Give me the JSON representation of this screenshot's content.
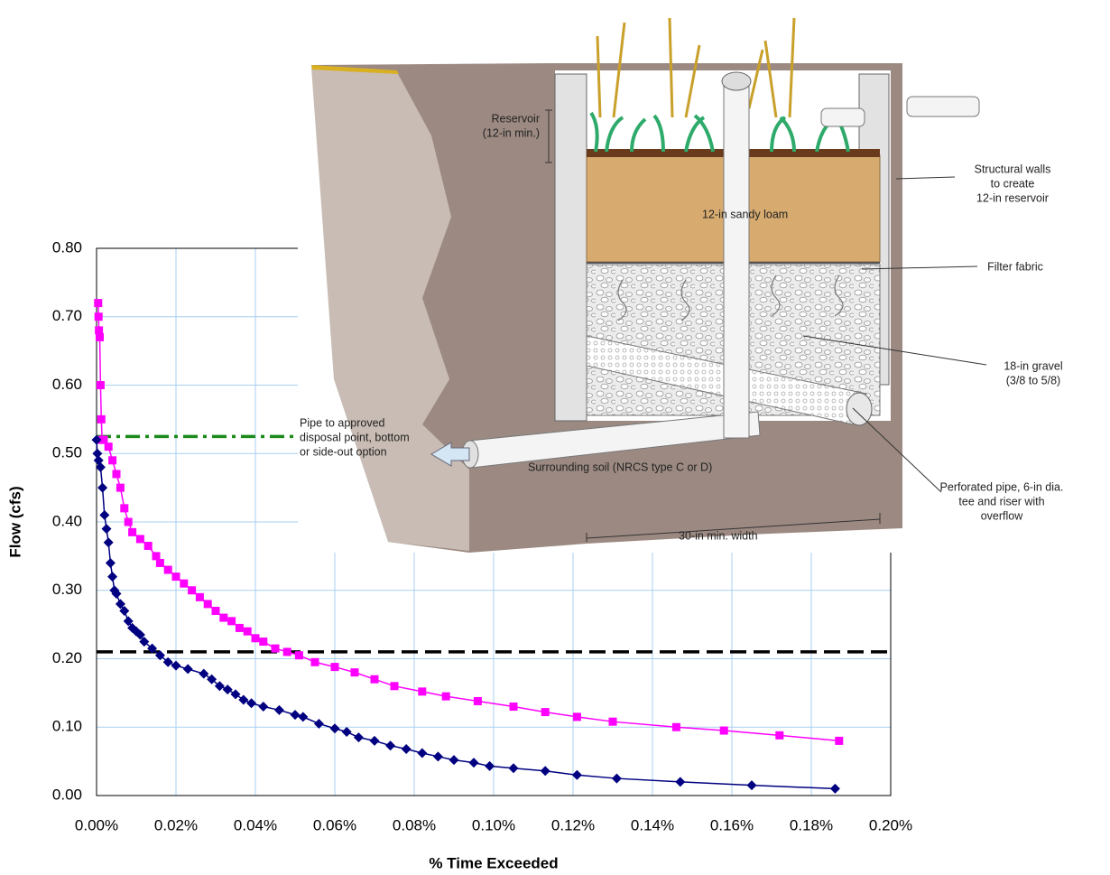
{
  "chart_data": {
    "type": "line",
    "xlabel": "% Time Exceeded",
    "ylabel": "Flow (cfs)",
    "xlim": [
      0,
      0.2
    ],
    "ylim": [
      0,
      0.8
    ],
    "xticks": [
      {
        "value": 0,
        "label": "0.00%"
      },
      {
        "value": 0.02,
        "label": "0.02%"
      },
      {
        "value": 0.04,
        "label": "0.04%"
      },
      {
        "value": 0.06,
        "label": "0.06%"
      },
      {
        "value": 0.08,
        "label": "0.08%"
      },
      {
        "value": 0.1,
        "label": "0.10%"
      },
      {
        "value": 0.12,
        "label": "0.12%"
      },
      {
        "value": 0.14,
        "label": "0.14%"
      },
      {
        "value": 0.16,
        "label": "0.16%"
      },
      {
        "value": 0.18,
        "label": "0.18%"
      },
      {
        "value": 0.2,
        "label": "0.20%"
      }
    ],
    "yticks": [
      {
        "value": 0,
        "label": "0.00"
      },
      {
        "value": 0.1,
        "label": "0.10"
      },
      {
        "value": 0.2,
        "label": "0.20"
      },
      {
        "value": 0.3,
        "label": "0.30"
      },
      {
        "value": 0.4,
        "label": "0.40"
      },
      {
        "value": 0.5,
        "label": "0.50"
      },
      {
        "value": 0.6,
        "label": "0.60"
      },
      {
        "value": 0.7,
        "label": "0.70"
      },
      {
        "value": 0.8,
        "label": "0.80"
      }
    ],
    "grid": true,
    "series": [
      {
        "color": "#ff00ff",
        "marker": "square",
        "x": [
          0.0004,
          0.0005,
          0.0006,
          0.0008,
          0.001,
          0.0012,
          0.0014,
          0.0018,
          0.003,
          0.004,
          0.005,
          0.006,
          0.007,
          0.008,
          0.009,
          0.011,
          0.013,
          0.015,
          0.016,
          0.018,
          0.02,
          0.022,
          0.024,
          0.026,
          0.028,
          0.03,
          0.032,
          0.034,
          0.036,
          0.038,
          0.04,
          0.042,
          0.045,
          0.048,
          0.051,
          0.055,
          0.06,
          0.065,
          0.07,
          0.075,
          0.082,
          0.088,
          0.096,
          0.105,
          0.113,
          0.121,
          0.13,
          0.146,
          0.158,
          0.172,
          0.187
        ],
        "values": [
          0.72,
          0.7,
          0.68,
          0.67,
          0.6,
          0.55,
          0.52,
          0.52,
          0.51,
          0.49,
          0.47,
          0.45,
          0.42,
          0.4,
          0.385,
          0.375,
          0.365,
          0.35,
          0.34,
          0.33,
          0.32,
          0.31,
          0.3,
          0.29,
          0.28,
          0.27,
          0.26,
          0.255,
          0.245,
          0.24,
          0.23,
          0.225,
          0.215,
          0.21,
          0.205,
          0.195,
          0.188,
          0.18,
          0.17,
          0.16,
          0.152,
          0.145,
          0.138,
          0.13,
          0.122,
          0.115,
          0.108,
          0.1,
          0.095,
          0.088,
          0.08
        ]
      },
      {
        "color": "#000080",
        "marker": "diamond",
        "x": [
          0,
          0.0002,
          0.0005,
          0.001,
          0.0015,
          0.002,
          0.0025,
          0.003,
          0.0035,
          0.004,
          0.0045,
          0.005,
          0.006,
          0.007,
          0.008,
          0.009,
          0.01,
          0.011,
          0.012,
          0.014,
          0.016,
          0.018,
          0.02,
          0.023,
          0.027,
          0.029,
          0.031,
          0.033,
          0.035,
          0.037,
          0.039,
          0.042,
          0.046,
          0.05,
          0.052,
          0.056,
          0.06,
          0.063,
          0.066,
          0.07,
          0.074,
          0.078,
          0.082,
          0.086,
          0.09,
          0.095,
          0.099,
          0.105,
          0.113,
          0.121,
          0.131,
          0.147,
          0.165,
          0.186
        ],
        "values": [
          0.52,
          0.5,
          0.49,
          0.48,
          0.45,
          0.41,
          0.39,
          0.37,
          0.34,
          0.32,
          0.3,
          0.295,
          0.28,
          0.27,
          0.255,
          0.245,
          0.24,
          0.235,
          0.225,
          0.215,
          0.205,
          0.195,
          0.19,
          0.185,
          0.178,
          0.17,
          0.16,
          0.155,
          0.148,
          0.14,
          0.135,
          0.13,
          0.125,
          0.118,
          0.115,
          0.105,
          0.098,
          0.093,
          0.085,
          0.08,
          0.073,
          0.068,
          0.062,
          0.057,
          0.052,
          0.048,
          0.043,
          0.04,
          0.036,
          0.03,
          0.025,
          0.02,
          0.015,
          0.01
        ]
      }
    ],
    "reference_lines": [
      {
        "value": 0.525,
        "color": "#1a8a1a",
        "dash": "dashdot"
      },
      {
        "value": 0.21,
        "color": "#000000",
        "dash": "dashed"
      }
    ]
  },
  "diagram": {
    "labels": [
      {
        "lines": [
          "Reservoir",
          "(12-in min.)"
        ]
      },
      {
        "lines": [
          "12-in sandy loam"
        ]
      },
      {
        "lines": [
          "Structural walls",
          "to create",
          "12-in reservoir"
        ]
      },
      {
        "lines": [
          "Filter fabric"
        ]
      },
      {
        "lines": [
          "18-in gravel",
          "(3/8 to 5/8)"
        ]
      },
      {
        "lines": [
          "Pipe to approved",
          "disposal point, bottom",
          "or side-out option"
        ]
      },
      {
        "lines": [
          "Surrounding soil (NRCS type C or D)"
        ]
      },
      {
        "lines": [
          "Perforated pipe, 6-in dia.",
          "tee and riser with",
          "overflow"
        ]
      },
      {
        "lines": [
          "30-in min. width"
        ]
      }
    ]
  }
}
